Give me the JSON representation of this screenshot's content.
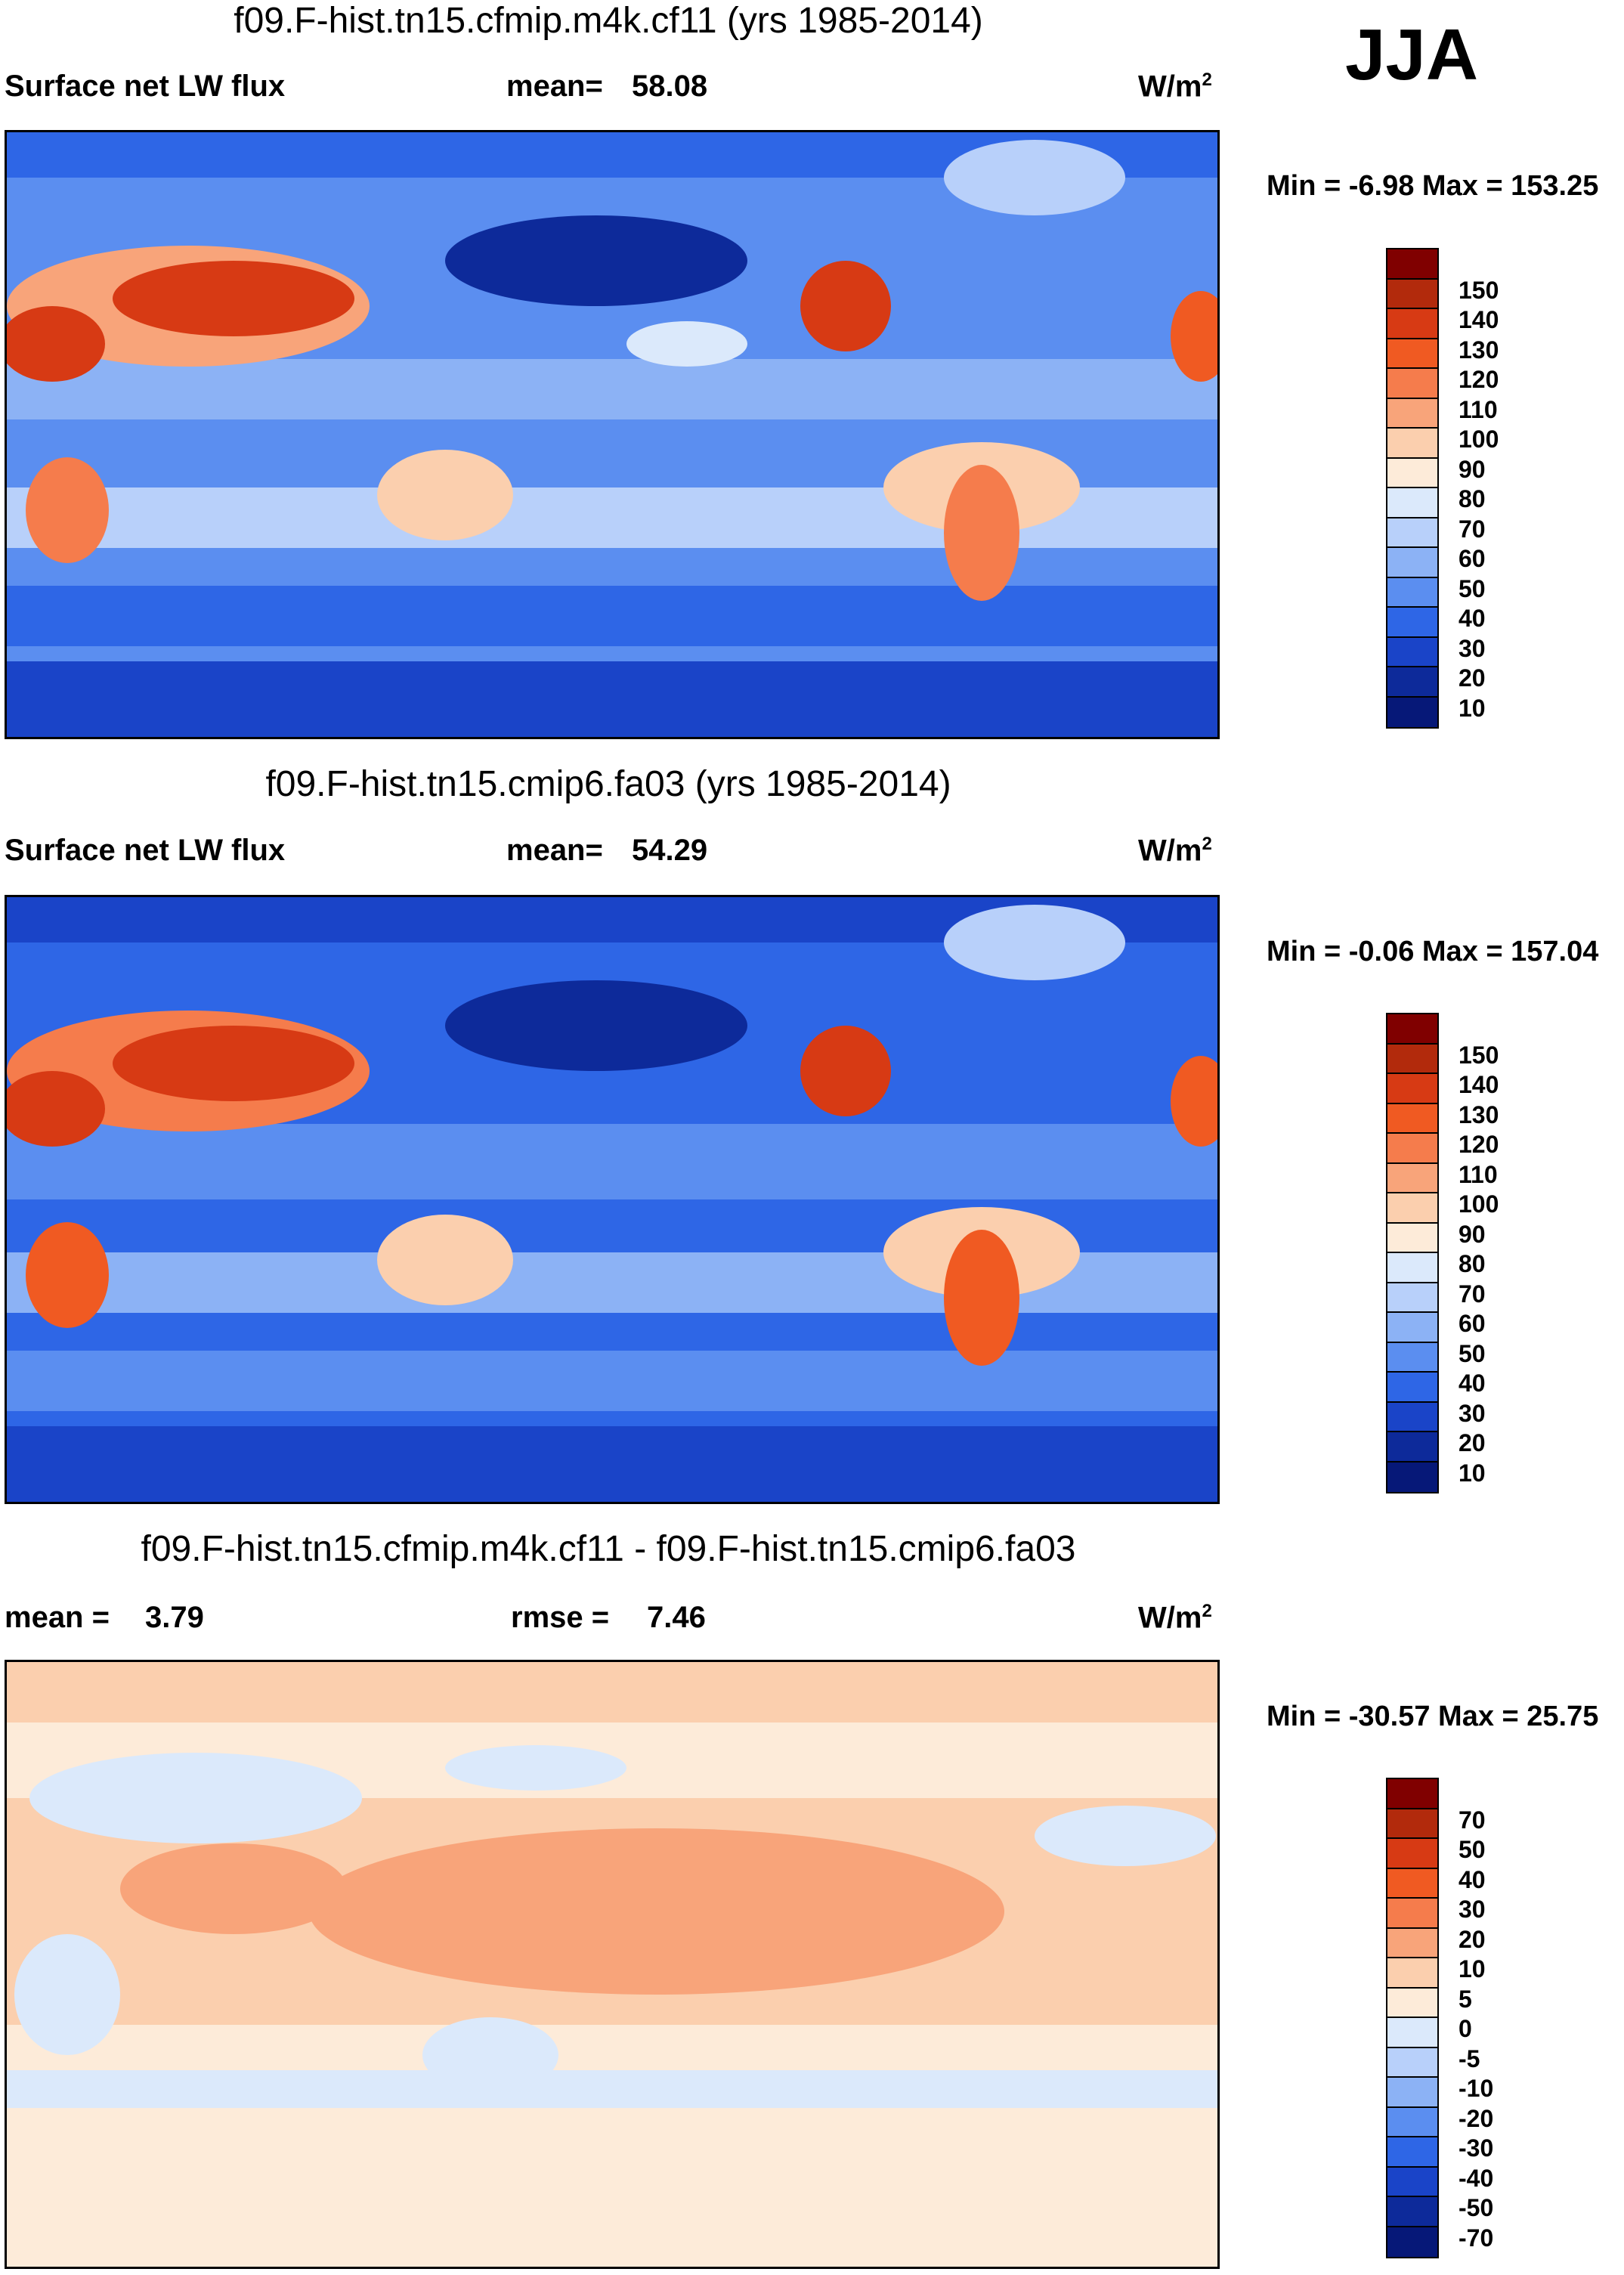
{
  "season": "JJA",
  "panels": [
    {
      "title": "f09.F-hist.tn15.cfmip.m4k.cf11 (yrs 1985-2014)",
      "variable": "Surface net LW flux",
      "stat_label": "mean=",
      "stat_value": "58.08",
      "units": "W/m",
      "units_sup": "2",
      "minmax": "Min =  -6.98 Max = 153.25",
      "colorbar_ticks": [
        "150",
        "140",
        "130",
        "120",
        "110",
        "100",
        "90",
        "80",
        "70",
        "60",
        "50",
        "40",
        "30",
        "20",
        "10"
      ]
    },
    {
      "title": "f09.F-hist.tn15.cmip6.fa03 (yrs 1985-2014)",
      "variable": "Surface net LW flux",
      "stat_label": "mean=",
      "stat_value": "54.29",
      "units": "W/m",
      "units_sup": "2",
      "minmax": "Min =  -0.06 Max = 157.04",
      "colorbar_ticks": [
        "150",
        "140",
        "130",
        "120",
        "110",
        "100",
        "90",
        "80",
        "70",
        "60",
        "50",
        "40",
        "30",
        "20",
        "10"
      ]
    },
    {
      "title": "f09.F-hist.tn15.cfmip.m4k.cf11 - f09.F-hist.tn15.cmip6.fa03",
      "stat_label": "mean =",
      "stat_value": "3.79",
      "rmse_label": "rmse =",
      "rmse_value": "7.46",
      "units": "W/m",
      "units_sup": "2",
      "minmax": "Min = -30.57 Max =  25.75",
      "colorbar_ticks": [
        "70",
        "50",
        "40",
        "30",
        "20",
        "10",
        "5",
        "0",
        "-5",
        "-10",
        "-20",
        "-30",
        "-40",
        "-50",
        "-70"
      ]
    }
  ],
  "colors": {
    "abs_scale": [
      "#800000",
      "#b22a0c",
      "#d73a14",
      "#f05a22",
      "#f57c4c",
      "#f8a47a",
      "#fbcfae",
      "#fdebd9",
      "#dbe9fb",
      "#b8d0fa",
      "#8cb2f5",
      "#5b8ef0",
      "#2e66e6",
      "#1a44c8",
      "#0d2a9a",
      "#061878"
    ],
    "diff_scale": [
      "#800000",
      "#b22a0c",
      "#d73a14",
      "#f05a22",
      "#f57c4c",
      "#f8a47a",
      "#fbcfae",
      "#fdebd9",
      "#dbe9fb",
      "#b8d0fa",
      "#8cb2f5",
      "#5b8ef0",
      "#2e66e6",
      "#1a44c8",
      "#0d2a9a",
      "#061878"
    ]
  }
}
